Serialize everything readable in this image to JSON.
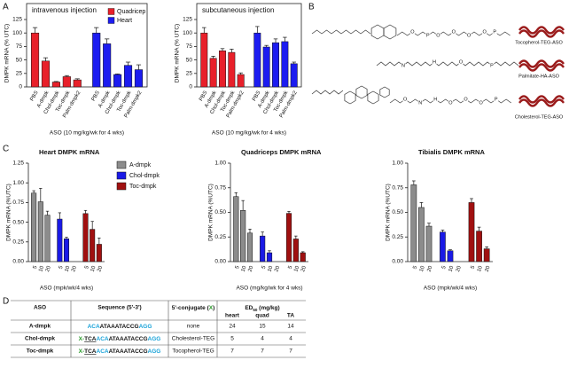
{
  "panel_labels": [
    "A",
    "B",
    "C",
    "D"
  ],
  "chart_data": [
    {
      "type": "bar",
      "title": "intravenous injection",
      "y_label": "DMPK mRNA (% UTC)",
      "x_label": "ASO (10 mg/kg/wk for 4 wks)",
      "categories": [
        "PBS",
        "A-dmpk",
        "Chol-dmpk",
        "Toc-dmpk",
        "Palm-dmpk2"
      ],
      "series": [
        {
          "name": "Quadricep",
          "color": "#e8202a",
          "values": [
            100,
            48,
            9,
            19,
            13
          ],
          "errors": [
            10,
            6,
            1,
            2,
            2
          ]
        },
        {
          "name": "Heart",
          "color": "#1c1cf0",
          "values": [
            100,
            80,
            23,
            40,
            32
          ],
          "errors": [
            10,
            9,
            1,
            6,
            9
          ]
        }
      ],
      "ylim": [
        0,
        125
      ],
      "yticks": [
        0,
        25,
        50,
        75,
        100,
        125
      ],
      "legend": "upper right",
      "frame": true
    },
    {
      "type": "bar",
      "title": "subcutaneous injection",
      "y_label": "DMPK mRNA (% UTC)",
      "x_label": "ASO (10 mg/kg/wk for 4 wks)",
      "categories": [
        "PBS",
        "A-dmpk",
        "Chol-dmpk",
        "Toc-dmpk",
        "Palm-dmpk2"
      ],
      "series": [
        {
          "color": "#e8202a",
          "values": [
            100,
            53,
            67,
            64,
            23
          ],
          "errors": [
            10,
            4,
            4,
            6,
            3
          ]
        },
        {
          "color": "#1c1cf0",
          "values": [
            100,
            74,
            82,
            84,
            43
          ],
          "errors": [
            12,
            3,
            7,
            8,
            3
          ]
        }
      ],
      "ylim": [
        0,
        125
      ],
      "yticks": [
        0,
        25,
        50,
        75,
        100,
        125
      ],
      "frame": true
    },
    {
      "type": "bar",
      "title": "Heart DMPK mRNA",
      "y_label": "DMPK mRNA (%UTC)",
      "x_label": "ASO (mpk/wk/4 wks)",
      "categories": [
        "5",
        "10",
        "20"
      ],
      "series": [
        {
          "name": "A-dmpk",
          "color": "#8c8c8c",
          "values": [
            0.87,
            0.76,
            0.59
          ],
          "errors": [
            0.03,
            0.17,
            0.05
          ]
        },
        {
          "name": "Chol-dmpk",
          "color": "#1a1ae6",
          "values": [
            0.54,
            0.29,
            null
          ],
          "errors": [
            0.08,
            0.02,
            null
          ]
        },
        {
          "name": "Toc-dmpk",
          "color": "#a01010",
          "values": [
            0.61,
            0.41,
            0.22
          ],
          "errors": [
            0.04,
            0.1,
            0.08
          ]
        }
      ],
      "ylim": [
        0,
        1.25
      ],
      "yticks": [
        {
          "value": 0,
          "label": "0.00"
        },
        0.25,
        {
          "value": 0.5,
          "label": "0.50"
        },
        0.75,
        {
          "value": 1,
          "label": "1.00"
        },
        1.25
      ],
      "legend": "right"
    },
    {
      "type": "bar",
      "title": "Quadriceps DMPK mRNA",
      "y_label": "DMPK mRNA (%UTC)",
      "x_label": "ASO (mg/kg/wk for 4 wks)",
      "categories": [
        "5",
        "10",
        "20"
      ],
      "series": [
        {
          "color": "#8c8c8c",
          "values": [
            0.66,
            0.52,
            0.29
          ],
          "errors": [
            0.04,
            0.1,
            0.04
          ]
        },
        {
          "color": "#1a1ae6",
          "values": [
            0.26,
            0.09,
            null
          ],
          "errors": [
            0.04,
            0.02,
            null
          ]
        },
        {
          "color": "#a01010",
          "values": [
            0.49,
            0.23,
            0.09
          ],
          "errors": [
            0.02,
            0.03,
            0.01
          ]
        }
      ],
      "ylim": [
        0,
        1
      ],
      "yticks": [
        {
          "value": 0,
          "label": "0.00"
        },
        0.25,
        {
          "value": 0.5,
          "label": "0.50"
        },
        0.75,
        {
          "value": 1,
          "label": "1.00"
        }
      ]
    },
    {
      "type": "bar",
      "title": "Tibialis DMPK mRNA",
      "y_label": "DMPK mRNA (%UTC)",
      "x_label": "ASO (mpk/wk/4 wks)",
      "categories": [
        "5",
        "10",
        "20"
      ],
      "series": [
        {
          "color": "#8c8c8c",
          "values": [
            0.78,
            0.55,
            0.36
          ],
          "errors": [
            0.04,
            0.05,
            0.03
          ]
        },
        {
          "color": "#1a1ae6",
          "values": [
            0.3,
            0.11,
            null
          ],
          "errors": [
            0.02,
            0.01,
            null
          ]
        },
        {
          "color": "#a01010",
          "values": [
            0.6,
            0.31,
            0.13
          ],
          "errors": [
            0.04,
            0.04,
            0.02
          ]
        }
      ],
      "ylim": [
        0,
        1
      ],
      "yticks": [
        {
          "value": 0,
          "label": "0.00"
        },
        0.25,
        {
          "value": 0.5,
          "label": "0.50"
        },
        0.75,
        {
          "value": 1,
          "label": "1.00"
        }
      ]
    }
  ],
  "structures": [
    {
      "label": "Tocopherol-TEG-ASO",
      "atoms": [
        "O",
        "P",
        "O",
        "O",
        "O",
        "O",
        "P"
      ]
    },
    {
      "label": "Palmitate-HA-ASO",
      "atoms": [
        "N",
        "H",
        "O",
        "P"
      ]
    },
    {
      "label": "Cholesterol-TEG-ASO",
      "atoms": [
        "O",
        "N",
        "H",
        "O",
        "O",
        "O",
        "P"
      ]
    }
  ],
  "table": {
    "header": [
      "ASO",
      "Sequence (5'-3')",
      [
        "5'-conjugate (",
        "X",
        ")"
      ],
      [
        "ED",
        "50",
        " (mg/kg)"
      ]
    ],
    "subheader": [
      "heart",
      "quad",
      "TA"
    ],
    "rows": [
      {
        "aso": "A-dmpk",
        "sequence": [
          "ACA",
          "ATAAATACCG",
          "AGG"
        ],
        "conjugate": "none",
        "ed50": [
          24,
          15,
          14
        ]
      },
      {
        "aso": "Chol-dmpk",
        "sequence": [
          "X-",
          "TCA",
          "ACA",
          "ATAAATACCG",
          "AGG"
        ],
        "conjugate": "Cholesterol-TEG",
        "ed50": [
          5,
          4,
          4
        ]
      },
      {
        "aso": "Toc-dmpk",
        "sequence": [
          "X-",
          "TCA",
          "ACA",
          "ATAAATACCG",
          "AGG"
        ],
        "conjugate": "Tocopherol-TEG",
        "ed50": [
          7,
          7,
          7
        ]
      }
    ]
  }
}
